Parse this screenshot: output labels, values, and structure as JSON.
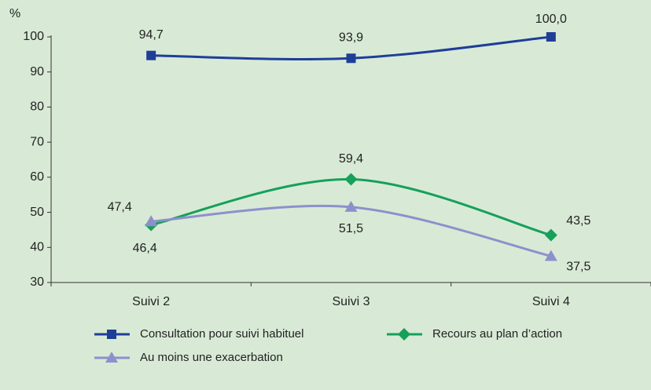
{
  "chart_data": {
    "type": "line",
    "y_label": "%",
    "categories": [
      "Suivi 2",
      "Suivi 3",
      "Suivi 4"
    ],
    "series": [
      {
        "name": "Consultation pour suivi habituel",
        "color": "#1f3e98",
        "marker": "square",
        "values": [
          94.7,
          93.9,
          100.0
        ],
        "value_labels": [
          "94,7",
          "93,9",
          "100,0"
        ]
      },
      {
        "name": "Recours au plan d’action",
        "color": "#16a05a",
        "marker": "diamond",
        "values": [
          46.4,
          59.4,
          43.5
        ],
        "value_labels": [
          "46,4",
          "59,4",
          "43,5"
        ]
      },
      {
        "name": "Au moins une exacerbation",
        "color": "#8e90cc",
        "marker": "triangle",
        "values": [
          47.4,
          51.5,
          37.5
        ],
        "value_labels": [
          "47,4",
          "51,5",
          "37,5"
        ]
      }
    ],
    "ylim": [
      30,
      100
    ],
    "yticks": [
      30,
      40,
      50,
      60,
      70,
      80,
      90,
      100
    ],
    "grid": false
  }
}
